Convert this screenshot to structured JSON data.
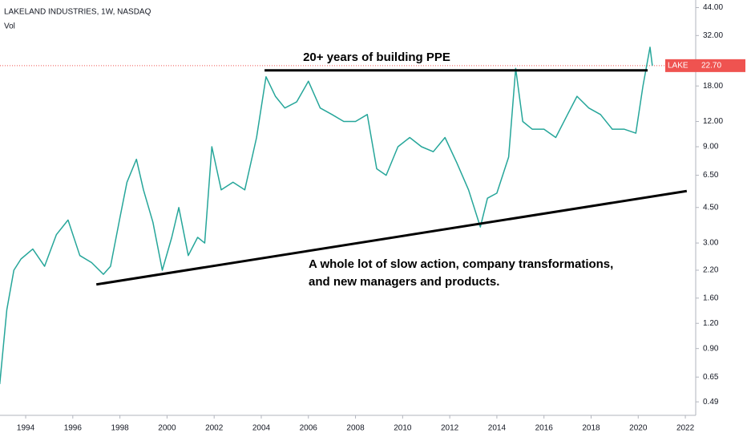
{
  "chart_data": {
    "type": "line",
    "title": "LAKELAND INDUSTRIES, 1W, NASDAQ",
    "subtitle": "Vol",
    "log_scale": true,
    "grid": false,
    "x": [
      1992.9,
      1993.2,
      1993.5,
      1993.8,
      1994.3,
      1994.8,
      1995.3,
      1995.8,
      1996.3,
      1996.8,
      1997.3,
      1997.6,
      1998.0,
      1998.3,
      1998.7,
      1999.0,
      1999.4,
      1999.8,
      2000.2,
      2000.5,
      2000.9,
      2001.3,
      2001.6,
      2001.9,
      2002.3,
      2002.8,
      2003.3,
      2003.8,
      2004.2,
      2004.6,
      2005.0,
      2005.5,
      2006.0,
      2006.5,
      2007.0,
      2007.5,
      2008.0,
      2008.5,
      2008.9,
      2009.3,
      2009.8,
      2010.3,
      2010.8,
      2011.3,
      2011.8,
      2012.3,
      2012.8,
      2013.3,
      2013.6,
      2014.0,
      2014.5,
      2014.8,
      2015.1,
      2015.5,
      2016.0,
      2016.5,
      2017.0,
      2017.4,
      2017.9,
      2018.4,
      2018.9,
      2019.4,
      2019.9,
      2020.2,
      2020.5,
      2020.6
    ],
    "series": [
      {
        "name": "LAKE",
        "color": "#26a69a",
        "values": [
          0.6,
          1.4,
          2.2,
          2.5,
          2.8,
          2.3,
          3.3,
          3.9,
          2.6,
          2.4,
          2.1,
          2.3,
          4.0,
          6.0,
          7.8,
          5.5,
          3.8,
          2.2,
          3.2,
          4.5,
          2.6,
          3.2,
          3.0,
          9.0,
          5.5,
          6.0,
          5.5,
          10,
          20,
          16,
          14,
          15,
          19,
          14,
          13,
          12,
          12,
          13,
          7.0,
          6.5,
          9,
          10,
          9,
          8.5,
          10,
          7.5,
          5.5,
          3.6,
          5.0,
          5.3,
          8.0,
          22,
          12,
          11,
          11,
          10,
          13,
          16,
          14,
          13,
          11,
          11,
          10.5,
          18,
          28,
          22.7
        ]
      }
    ],
    "last_price": {
      "value": 22.7,
      "label": "22.70"
    },
    "last_price_color": "#ef5350",
    "trendlines": [
      {
        "x": [
          2004.14,
          2020.4
        ],
        "y": [
          21.5,
          21.5
        ]
      },
      {
        "x": [
          1997.0,
          2022.06
        ],
        "y": [
          1.87,
          5.43
        ]
      }
    ],
    "trendline_color": "#000000",
    "annotations": [
      "20+ years of building PPE",
      "A whole lot of slow action, company transformations,",
      "and new managers and products."
    ],
    "xlim": [
      1992.91,
      2022.44
    ],
    "xticks": [
      1994,
      1996,
      1998,
      2000,
      2002,
      2004,
      2006,
      2008,
      2010,
      2012,
      2014,
      2016,
      2018,
      2020,
      2022
    ],
    "ylim": [
      0.42,
      48
    ],
    "yticks": [
      {
        "value": 0.49,
        "label": "0.49"
      },
      {
        "value": 0.65,
        "label": "0.65"
      },
      {
        "value": 0.9,
        "label": "0.90"
      },
      {
        "value": 1.2,
        "label": "1.20"
      },
      {
        "value": 1.6,
        "label": "1.60"
      },
      {
        "value": 2.2,
        "label": "2.20"
      },
      {
        "value": 3,
        "label": "3.00"
      },
      {
        "value": 4.5,
        "label": "4.50"
      },
      {
        "value": 6.5,
        "label": "6.50"
      },
      {
        "value": 9,
        "label": "9.00"
      },
      {
        "value": 12,
        "label": "12.00"
      },
      {
        "value": 18,
        "label": "18.00"
      },
      {
        "value": 32,
        "label": "32.00"
      },
      {
        "value": 44,
        "label": "44.00"
      }
    ]
  }
}
